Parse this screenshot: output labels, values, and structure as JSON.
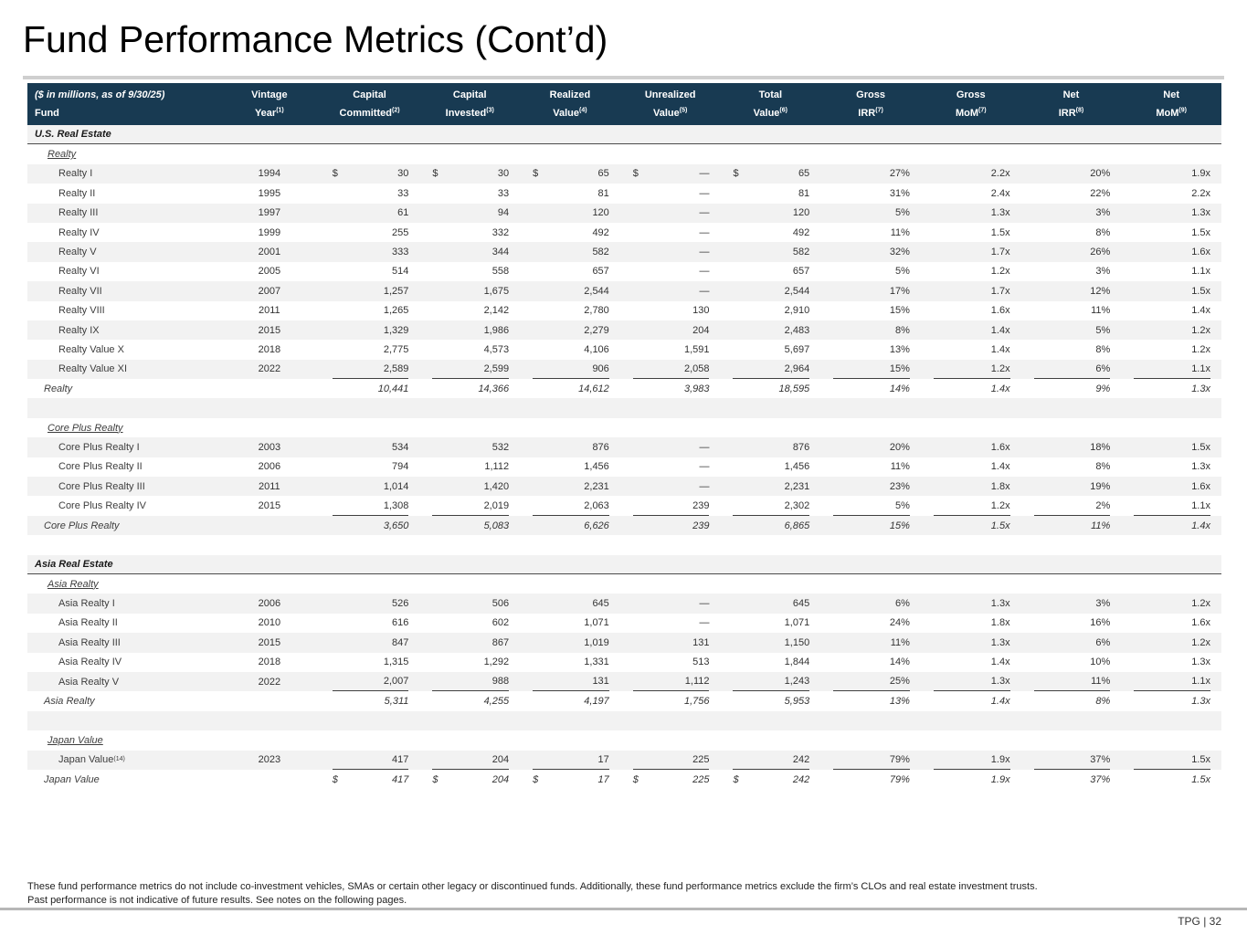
{
  "page": {
    "title": "Fund Performance Metrics (Cont’d)",
    "page_label": "TPG | 32",
    "footnote1": "These fund performance metrics do not include co-investment vehicles, SMAs or certain other legacy or discontinued funds. Additionally, these fund performance metrics exclude the firm’s CLOs and real estate investment trusts.",
    "footnote2": "Past performance is not indicative of future results. See notes on the following pages."
  },
  "colors": {
    "header_navy": "#183A52",
    "row_stripe": "#f2f2f2",
    "accent_rule": "#4b4b4b"
  },
  "table": {
    "corner": {
      "line1": "($ in millions, as of 9/30/25)",
      "line2": "Fund"
    },
    "columns": [
      {
        "line1": "Vintage",
        "line2": "Year",
        "sup": "(1)"
      },
      {
        "line1": "Capital",
        "line2": "Committed",
        "sup": "(2)"
      },
      {
        "line1": "Capital",
        "line2": "Invested",
        "sup": "(3)"
      },
      {
        "line1": "Realized",
        "line2": "Value",
        "sup": "(4)"
      },
      {
        "line1": "Unrealized",
        "line2": "Value",
        "sup": "(5)"
      },
      {
        "line1": "Total",
        "line2": "Value",
        "sup": "(6)"
      },
      {
        "line1": "Gross",
        "line2": "IRR",
        "sup": "(7)"
      },
      {
        "line1": "Gross",
        "line2": "MoM",
        "sup": "(7)"
      },
      {
        "line1": "Net",
        "line2": "IRR",
        "sup": "(8)"
      },
      {
        "line1": "Net",
        "line2": "MoM",
        "sup": "(9)"
      }
    ],
    "rows": [
      {
        "t": "section",
        "label": "U.S. Real Estate",
        "bg": "stripe"
      },
      {
        "t": "subheader",
        "label": "Realty",
        "bg": "white"
      },
      {
        "t": "fund",
        "label": "Realty I",
        "vintage": "1994",
        "v": [
          "30",
          "30",
          "65",
          "—",
          "65",
          "27%",
          "2.2x",
          "20%",
          "1.9x"
        ],
        "d": [
          0,
          1,
          2,
          3,
          4
        ],
        "bg": "stripe"
      },
      {
        "t": "fund",
        "label": "Realty II",
        "vintage": "1995",
        "v": [
          "33",
          "33",
          "81",
          "—",
          "81",
          "31%",
          "2.4x",
          "22%",
          "2.2x"
        ],
        "d": [],
        "bg": "white"
      },
      {
        "t": "fund",
        "label": "Realty III",
        "vintage": "1997",
        "v": [
          "61",
          "94",
          "120",
          "—",
          "120",
          "5%",
          "1.3x",
          "3%",
          "1.3x"
        ],
        "d": [],
        "bg": "stripe"
      },
      {
        "t": "fund",
        "label": "Realty IV",
        "vintage": "1999",
        "v": [
          "255",
          "332",
          "492",
          "—",
          "492",
          "11%",
          "1.5x",
          "8%",
          "1.5x"
        ],
        "d": [],
        "bg": "white"
      },
      {
        "t": "fund",
        "label": "Realty V",
        "vintage": "2001",
        "v": [
          "333",
          "344",
          "582",
          "—",
          "582",
          "32%",
          "1.7x",
          "26%",
          "1.6x"
        ],
        "d": [],
        "bg": "stripe"
      },
      {
        "t": "fund",
        "label": "Realty VI",
        "vintage": "2005",
        "v": [
          "514",
          "558",
          "657",
          "—",
          "657",
          "5%",
          "1.2x",
          "3%",
          "1.1x"
        ],
        "d": [],
        "bg": "white"
      },
      {
        "t": "fund",
        "label": "Realty VII",
        "vintage": "2007",
        "v": [
          "1,257",
          "1,675",
          "2,544",
          "—",
          "2,544",
          "17%",
          "1.7x",
          "12%",
          "1.5x"
        ],
        "d": [],
        "bg": "stripe"
      },
      {
        "t": "fund",
        "label": "Realty VIII",
        "vintage": "2011",
        "v": [
          "1,265",
          "2,142",
          "2,780",
          "130",
          "2,910",
          "15%",
          "1.6x",
          "11%",
          "1.4x"
        ],
        "d": [],
        "bg": "white"
      },
      {
        "t": "fund",
        "label": "Realty IX",
        "vintage": "2015",
        "v": [
          "1,329",
          "1,986",
          "2,279",
          "204",
          "2,483",
          "8%",
          "1.4x",
          "5%",
          "1.2x"
        ],
        "d": [],
        "bg": "stripe"
      },
      {
        "t": "fund",
        "label": "Realty Value X",
        "vintage": "2018",
        "v": [
          "2,775",
          "4,573",
          "4,106",
          "1,591",
          "5,697",
          "13%",
          "1.4x",
          "8%",
          "1.2x"
        ],
        "d": [],
        "bg": "white"
      },
      {
        "t": "fund",
        "label": "Realty Value XI",
        "vintage": "2022",
        "v": [
          "2,589",
          "2,599",
          "906",
          "2,058",
          "2,964",
          "15%",
          "1.2x",
          "6%",
          "1.1x"
        ],
        "d": [],
        "bg": "stripe",
        "u": true
      },
      {
        "t": "total",
        "label": "Realty",
        "vintage": "",
        "v": [
          "10,441",
          "14,366",
          "14,612",
          "3,983",
          "18,595",
          "14%",
          "1.4x",
          "9%",
          "1.3x"
        ],
        "d": [],
        "bg": "white"
      },
      {
        "t": "blank",
        "bg": "stripe"
      },
      {
        "t": "subheader",
        "label": "Core Plus Realty",
        "bg": "white"
      },
      {
        "t": "fund",
        "label": "Core Plus Realty I",
        "vintage": "2003",
        "v": [
          "534",
          "532",
          "876",
          "—",
          "876",
          "20%",
          "1.6x",
          "18%",
          "1.5x"
        ],
        "d": [],
        "bg": "stripe"
      },
      {
        "t": "fund",
        "label": "Core Plus Realty II",
        "vintage": "2006",
        "v": [
          "794",
          "1,112",
          "1,456",
          "—",
          "1,456",
          "11%",
          "1.4x",
          "8%",
          "1.3x"
        ],
        "d": [],
        "bg": "white"
      },
      {
        "t": "fund",
        "label": "Core Plus Realty III",
        "vintage": "2011",
        "v": [
          "1,014",
          "1,420",
          "2,231",
          "—",
          "2,231",
          "23%",
          "1.8x",
          "19%",
          "1.6x"
        ],
        "d": [],
        "bg": "stripe"
      },
      {
        "t": "fund",
        "label": "Core Plus Realty IV",
        "vintage": "2015",
        "v": [
          "1,308",
          "2,019",
          "2,063",
          "239",
          "2,302",
          "5%",
          "1.2x",
          "2%",
          "1.1x"
        ],
        "d": [],
        "bg": "white",
        "u": true
      },
      {
        "t": "total",
        "label": "Core Plus Realty",
        "vintage": "",
        "v": [
          "3,650",
          "5,083",
          "6,626",
          "239",
          "6,865",
          "15%",
          "1.5x",
          "11%",
          "1.4x"
        ],
        "d": [],
        "bg": "stripe"
      },
      {
        "t": "blank",
        "bg": "white"
      },
      {
        "t": "section",
        "label": "Asia Real Estate",
        "bg": "stripe"
      },
      {
        "t": "subheader",
        "label": "Asia Realty",
        "bg": "white"
      },
      {
        "t": "fund",
        "label": "Asia Realty I",
        "vintage": "2006",
        "v": [
          "526",
          "506",
          "645",
          "—",
          "645",
          "6%",
          "1.3x",
          "3%",
          "1.2x"
        ],
        "d": [],
        "bg": "stripe"
      },
      {
        "t": "fund",
        "label": "Asia Realty II",
        "vintage": "2010",
        "v": [
          "616",
          "602",
          "1,071",
          "—",
          "1,071",
          "24%",
          "1.8x",
          "16%",
          "1.6x"
        ],
        "d": [],
        "bg": "white"
      },
      {
        "t": "fund",
        "label": "Asia Realty III",
        "vintage": "2015",
        "v": [
          "847",
          "867",
          "1,019",
          "131",
          "1,150",
          "11%",
          "1.3x",
          "6%",
          "1.2x"
        ],
        "d": [],
        "bg": "stripe"
      },
      {
        "t": "fund",
        "label": "Asia Realty IV",
        "vintage": "2018",
        "v": [
          "1,315",
          "1,292",
          "1,331",
          "513",
          "1,844",
          "14%",
          "1.4x",
          "10%",
          "1.3x"
        ],
        "d": [],
        "bg": "white"
      },
      {
        "t": "fund",
        "label": "Asia Realty V",
        "vintage": "2022",
        "v": [
          "2,007",
          "988",
          "131",
          "1,112",
          "1,243",
          "25%",
          "1.3x",
          "11%",
          "1.1x"
        ],
        "d": [],
        "bg": "stripe",
        "u": true
      },
      {
        "t": "total",
        "label": "Asia Realty",
        "vintage": "",
        "v": [
          "5,311",
          "4,255",
          "4,197",
          "1,756",
          "5,953",
          "13%",
          "1.4x",
          "8%",
          "1.3x"
        ],
        "d": [],
        "bg": "white"
      },
      {
        "t": "blank",
        "bg": "stripe"
      },
      {
        "t": "subheader",
        "label": "Japan Value",
        "bg": "white"
      },
      {
        "t": "fund",
        "label": "Japan Value",
        "sup": "(14)",
        "vintage": "2023",
        "v": [
          "417",
          "204",
          "17",
          "225",
          "242",
          "79%",
          "1.9x",
          "37%",
          "1.5x"
        ],
        "d": [],
        "bg": "stripe",
        "u": true
      },
      {
        "t": "total",
        "label": "Japan Value",
        "vintage": "",
        "v": [
          "417",
          "204",
          "17",
          "225",
          "242",
          "79%",
          "1.9x",
          "37%",
          "1.5x"
        ],
        "d": [
          0,
          1,
          2,
          3,
          4
        ],
        "bg": "white"
      }
    ]
  }
}
